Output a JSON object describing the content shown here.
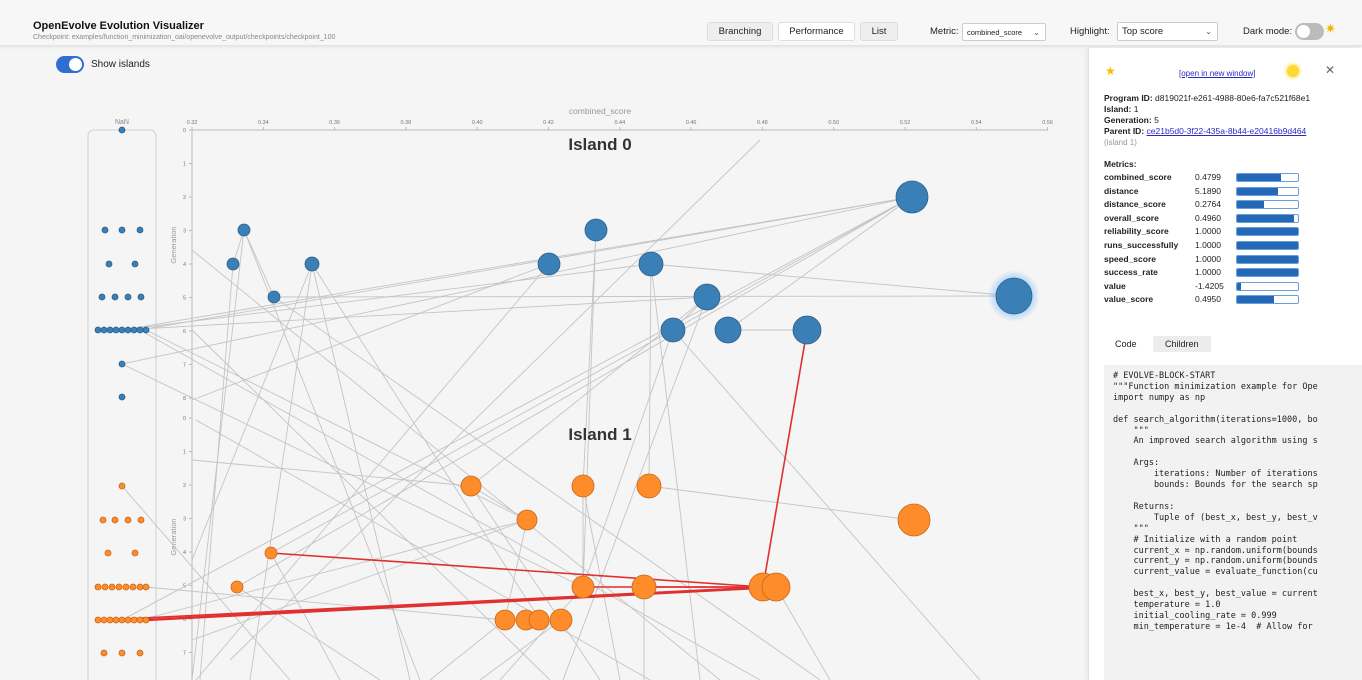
{
  "header": {
    "title": "OpenEvolve Evolution Visualizer",
    "checkpoint": "Checkpoint: examples/function_minimization_oai/openevolve_output/checkpoints/checkpoint_100",
    "tabs": [
      {
        "label": "Branching",
        "active": false
      },
      {
        "label": "Performance",
        "active": true
      },
      {
        "label": "List",
        "active": false
      }
    ],
    "metric_label": "Metric:",
    "metric_value": "combined_score",
    "highlight_label": "Highlight:",
    "highlight_value": "Top score",
    "dark_mode_label": "Dark mode:",
    "dark_mode_on": false
  },
  "toolbar": {
    "show_islands_label": "Show islands",
    "show_islands_on": true
  },
  "graph": {
    "x_axis_label": "combined_score",
    "x_ticks": [
      "0.32",
      "0.34",
      "0.36",
      "0.38",
      "0.40",
      "0.42",
      "0.44",
      "0.46",
      "0.48",
      "0.50",
      "0.52",
      "0.54",
      "0.56"
    ],
    "y_axis_label": "Generation",
    "nan_label": "NaN",
    "island_titles": [
      "Island 0",
      "Island 1"
    ],
    "island0_y_ticks": [
      "0",
      "1",
      "2",
      "3",
      "4",
      "5",
      "6",
      "7",
      "8"
    ],
    "island1_y_ticks": [
      "0",
      "1",
      "2",
      "3",
      "4",
      "5",
      "6",
      "7"
    ],
    "colors": {
      "island0": "#3a7fb5",
      "island1": "#ff8c2a",
      "highlight_edge": "#e03030",
      "edge": "#c4c4c4",
      "selected_glow": "#4aa0ff"
    }
  },
  "details": {
    "open_link": "[open in new window]",
    "program_id_label": "Program ID:",
    "program_id": "d819021f-e261-4988-80e6-fa7c521f68e1",
    "island_label": "Island:",
    "island": "1",
    "generation_label": "Generation:",
    "generation": "5",
    "parent_label": "Parent ID:",
    "parent_id": "ce21b5d0-3f22-435a-8b44-e20416b9d464",
    "parent_island": "(island 1)",
    "metrics_title": "Metrics:",
    "metrics": [
      {
        "name": "combined_score",
        "value": "0.4799",
        "fill": 0.72
      },
      {
        "name": "distance",
        "value": "5.1890",
        "fill": 0.68
      },
      {
        "name": "distance_score",
        "value": "0.2764",
        "fill": 0.45
      },
      {
        "name": "overall_score",
        "value": "0.4960",
        "fill": 0.93
      },
      {
        "name": "reliability_score",
        "value": "1.0000",
        "fill": 1.0
      },
      {
        "name": "runs_successfully",
        "value": "1.0000",
        "fill": 1.0
      },
      {
        "name": "speed_score",
        "value": "1.0000",
        "fill": 1.0
      },
      {
        "name": "success_rate",
        "value": "1.0000",
        "fill": 1.0
      },
      {
        "name": "value",
        "value": "-1.4205",
        "fill": 0.06
      },
      {
        "name": "value_score",
        "value": "0.4950",
        "fill": 0.6
      }
    ],
    "tab_code": "Code",
    "tab_children": "Children",
    "code_lines": [
      "# EVOLVE-BLOCK-START",
      "\"\"\"Function minimization example for Ope",
      "import numpy as np",
      "",
      "def search_algorithm(iterations=1000, bo",
      "    \"\"\"",
      "    An improved search algorithm using s",
      "",
      "    Args:",
      "        iterations: Number of iterations",
      "        bounds: Bounds for the search sp",
      "",
      "    Returns:",
      "        Tuple of (best_x, best_y, best_v",
      "    \"\"\"",
      "    # Initialize with a random point",
      "    current_x = np.random.uniform(bounds",
      "    current_y = np.random.uniform(bounds",
      "    current_value = evaluate_function(cu",
      "",
      "    best_x, best_y, best_value = current",
      "    temperature = 1.0",
      "    initial_cooling_rate = 0.999",
      "    min_temperature = 1e-4  # Allow for"
    ]
  }
}
